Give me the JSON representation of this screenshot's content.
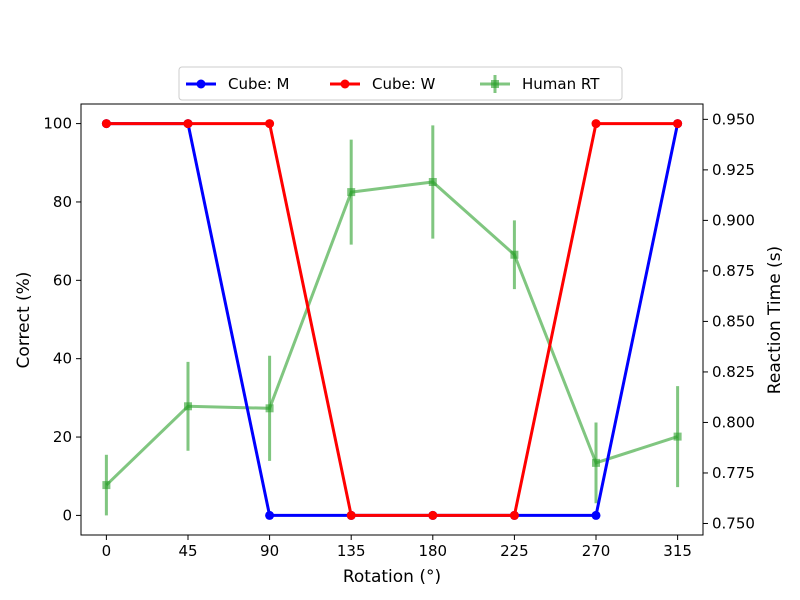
{
  "chart_data": {
    "type": "line",
    "title": "",
    "x": [
      0,
      45,
      90,
      135,
      180,
      225,
      270,
      315
    ],
    "x_ticks": [
      "0",
      "45",
      "90",
      "135",
      "180",
      "225",
      "270",
      "315"
    ],
    "xlabel": "Rotation (°)",
    "ylabel_left": "Correct (%)",
    "ylabel_right": "Reaction Time (s)",
    "ylim_left": [
      -5,
      105
    ],
    "yticks_left": [
      "0",
      "20",
      "40",
      "60",
      "80",
      "100"
    ],
    "ylim_right": [
      0.7443,
      0.9576
    ],
    "yticks_right": [
      "0.750",
      "0.775",
      "0.800",
      "0.825",
      "0.850",
      "0.875",
      "0.900",
      "0.925",
      "0.950"
    ],
    "grid": false,
    "legend_position": "top-center",
    "series": [
      {
        "name": "Cube: M",
        "axis": "left",
        "color": "#0000ff",
        "marker": "circle",
        "values": [
          100,
          100,
          0,
          0,
          0,
          0,
          0,
          100
        ]
      },
      {
        "name": "Cube: W",
        "axis": "left",
        "color": "#ff0000",
        "marker": "circle",
        "values": [
          100,
          100,
          100,
          0,
          0,
          0,
          100,
          100
        ]
      },
      {
        "name": "Human RT",
        "axis": "right",
        "color": "#2ca02c",
        "marker": "square",
        "values": [
          0.769,
          0.808,
          0.807,
          0.914,
          0.919,
          0.883,
          0.78,
          0.793
        ],
        "error": [
          0.015,
          0.022,
          0.026,
          0.026,
          0.028,
          0.017,
          0.02,
          0.025
        ]
      }
    ]
  }
}
